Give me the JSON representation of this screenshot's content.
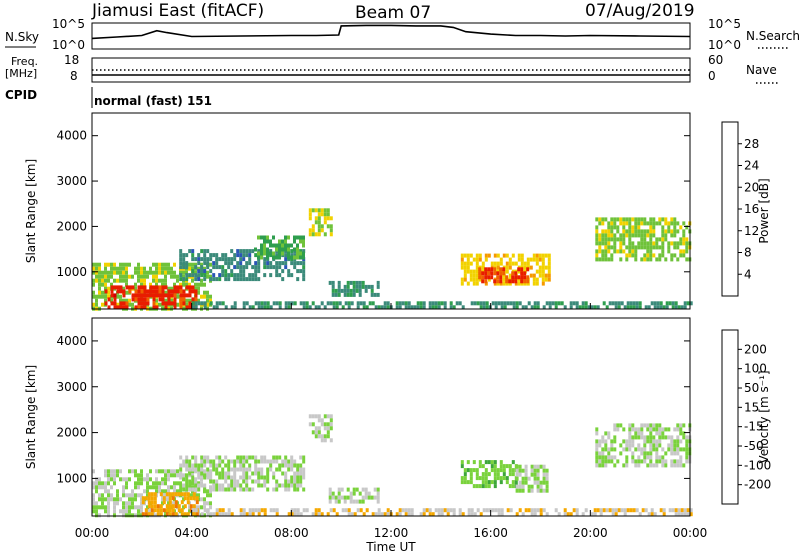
{
  "header": {
    "station": "Jiamusi East (fitACF)",
    "beam": "Beam 07",
    "date": "07/Aug/2019"
  },
  "noise_panel": {
    "left_label": "N.Sky",
    "right_label": "N.Search",
    "right_line_style": "dotted",
    "tick_top": "10^5",
    "tick_bottom": "10^0"
  },
  "freq_panel": {
    "left_label_line1": "Freq.",
    "left_label_line2": "[MHz]",
    "left_tick_top": "18",
    "left_tick_bottom": "8",
    "right_label": "Nave",
    "right_line_style": "dotted",
    "right_tick_top": "60",
    "right_tick_bottom": "0"
  },
  "cpid": {
    "label": "CPID",
    "value": "normal (fast) 151"
  },
  "power_panel": {
    "ylabel": "Slant Range [km]",
    "colorbar_label": "Power [dB]",
    "colorbar_ticks": [
      "4",
      "8",
      "12",
      "16",
      "20",
      "24",
      "28"
    ]
  },
  "velocity_panel": {
    "ylabel": "Slant Range [km]",
    "colorbar_label": "Velocity [m s⁻¹]",
    "colorbar_ticks": [
      "-200",
      "-100",
      "-50",
      "-15",
      "15",
      "50",
      "100",
      "200"
    ]
  },
  "colors": {
    "power_scale": [
      "#1414e6",
      "#2a55b5",
      "#3b8a7a",
      "#2e9e4e",
      "#6fc23a",
      "#f2d200",
      "#f59a00",
      "#f06000",
      "#e81c00",
      "#d00000"
    ],
    "velocity_scale": [
      "#e80000",
      "#f04000",
      "#f07800",
      "#f5a800",
      "#c8c8c8",
      "#7ad23c",
      "#3da63a",
      "#2e6e8e",
      "#2040c0",
      "#1010d0"
    ]
  },
  "chart_data": [
    {
      "type": "line",
      "title": "N.Sky",
      "x": [
        0.0,
        1.0,
        2.0,
        2.6,
        3.0,
        4.0,
        6.0,
        8.0,
        9.0,
        9.9,
        10.0,
        11.0,
        12.0,
        13.0,
        14.0,
        14.5,
        15.0,
        16.0,
        17.0,
        18.0,
        19.0,
        20.0,
        22.0,
        24.0
      ],
      "y_log10": [
        2.0,
        2.3,
        2.6,
        3.6,
        3.2,
        2.4,
        2.5,
        2.6,
        2.6,
        2.7,
        4.6,
        4.7,
        4.7,
        4.6,
        4.6,
        4.3,
        3.4,
        2.9,
        2.6,
        2.6,
        2.5,
        2.6,
        2.5,
        2.4
      ],
      "xlim": [
        0,
        24
      ],
      "ylim": [
        "10^0",
        "10^5"
      ]
    },
    {
      "type": "heatmap",
      "title": "Power",
      "xlabel": "Time UT",
      "ylabel": "Slant Range [km]",
      "colorbar_label": "Power [dB]",
      "xlim": [
        0,
        24
      ],
      "ylim": [
        180,
        4500
      ],
      "xticks": [
        "00:00",
        "04:00",
        "08:00",
        "12:00",
        "16:00",
        "20:00",
        "00:00"
      ],
      "yticks": [
        1000,
        2000,
        3000,
        4000
      ],
      "clim": [
        0,
        32
      ],
      "regions": [
        {
          "t0": 0.0,
          "t1": 4.8,
          "r0": 180,
          "r1": 1200,
          "value": 15
        },
        {
          "t0": 0.5,
          "t1": 4.2,
          "r0": 200,
          "r1": 700,
          "value": 27
        },
        {
          "t0": 3.5,
          "t1": 8.5,
          "r0": 800,
          "r1": 1500,
          "value": 8
        },
        {
          "t0": 6.5,
          "t1": 8.5,
          "r0": 1300,
          "r1": 1800,
          "value": 12
        },
        {
          "t0": 8.7,
          "t1": 9.6,
          "r0": 1800,
          "r1": 2400,
          "value": 16
        },
        {
          "t0": 9.5,
          "t1": 11.5,
          "r0": 500,
          "r1": 800,
          "value": 9
        },
        {
          "t0": 14.8,
          "t1": 18.3,
          "r0": 700,
          "r1": 1400,
          "value": 18
        },
        {
          "t0": 15.5,
          "t1": 17.5,
          "r0": 800,
          "r1": 1100,
          "value": 26
        },
        {
          "t0": 20.2,
          "t1": 24.0,
          "r0": 1300,
          "r1": 2200,
          "value": 15
        },
        {
          "t0": 4.0,
          "t1": 24.0,
          "r0": 180,
          "r1": 350,
          "value": 9
        }
      ]
    },
    {
      "type": "heatmap",
      "title": "Velocity",
      "xlabel": "Time UT",
      "ylabel": "Slant Range [km]",
      "colorbar_label": "Velocity [m s⁻¹]",
      "xlim": [
        0,
        24
      ],
      "ylim": [
        180,
        4500
      ],
      "xticks": [
        "00:00",
        "04:00",
        "08:00",
        "12:00",
        "16:00",
        "20:00",
        "00:00"
      ],
      "yticks": [
        1000,
        2000,
        3000,
        4000
      ],
      "clim": [
        -250,
        250
      ],
      "regions": [
        {
          "t0": 0.0,
          "t1": 4.8,
          "r0": 180,
          "r1": 1200,
          "value": 0
        },
        {
          "t0": 2.0,
          "t1": 4.2,
          "r0": 200,
          "r1": 700,
          "value": -80
        },
        {
          "t0": 3.5,
          "t1": 8.5,
          "r0": 800,
          "r1": 1500,
          "value": 0
        },
        {
          "t0": 8.7,
          "t1": 9.6,
          "r0": 1800,
          "r1": 2400,
          "value": 0
        },
        {
          "t0": 9.5,
          "t1": 11.5,
          "r0": 500,
          "r1": 800,
          "value": 0
        },
        {
          "t0": 14.8,
          "t1": 17.0,
          "r0": 800,
          "r1": 1400,
          "value": 35
        },
        {
          "t0": 17.0,
          "t1": 18.3,
          "r0": 700,
          "r1": 1300,
          "value": 0
        },
        {
          "t0": 20.2,
          "t1": 24.0,
          "r0": 1300,
          "r1": 2200,
          "value": 0
        },
        {
          "t0": 4.0,
          "t1": 24.0,
          "r0": 180,
          "r1": 350,
          "value": -40
        }
      ]
    }
  ]
}
